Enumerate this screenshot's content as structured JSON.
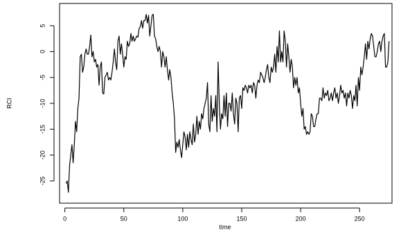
{
  "chart_data": {
    "type": "line",
    "xlabel": "time",
    "ylabel": "RCI",
    "x": [
      1,
      2,
      3,
      4,
      5,
      6,
      7,
      8,
      9,
      10,
      11,
      12,
      13,
      14,
      15,
      16,
      17,
      18,
      19,
      20,
      21,
      22,
      23,
      24,
      25,
      26,
      27,
      28,
      29,
      30,
      31,
      32,
      33,
      34,
      35,
      36,
      37,
      38,
      39,
      40,
      41,
      42,
      43,
      44,
      45,
      46,
      47,
      48,
      49,
      50,
      51,
      52,
      53,
      54,
      55,
      56,
      57,
      58,
      59,
      60,
      61,
      62,
      63,
      64,
      65,
      66,
      67,
      68,
      69,
      70,
      71,
      72,
      73,
      74,
      75,
      76,
      77,
      78,
      79,
      80,
      81,
      82,
      83,
      84,
      85,
      86,
      87,
      88,
      89,
      90,
      91,
      92,
      93,
      94,
      95,
      96,
      97,
      98,
      99,
      100,
      101,
      102,
      103,
      104,
      105,
      106,
      107,
      108,
      109,
      110,
      111,
      112,
      113,
      114,
      115,
      116,
      117,
      118,
      119,
      120,
      121,
      122,
      123,
      124,
      125,
      126,
      127,
      128,
      129,
      130,
      131,
      132,
      133,
      134,
      135,
      136,
      137,
      138,
      139,
      140,
      141,
      142,
      143,
      144,
      145,
      146,
      147,
      148,
      149,
      150,
      151,
      152,
      153,
      154,
      155,
      156,
      157,
      158,
      159,
      160,
      161,
      162,
      163,
      164,
      165,
      166,
      167,
      168,
      169,
      170,
      171,
      172,
      173,
      174,
      175,
      176,
      177,
      178,
      179,
      180,
      181,
      182,
      183,
      184,
      185,
      186,
      187,
      188,
      189,
      190,
      191,
      192,
      193,
      194,
      195,
      196,
      197,
      198,
      199,
      200,
      201,
      202,
      203,
      204,
      205,
      206,
      207,
      208,
      209,
      210,
      211,
      212,
      213,
      214,
      215,
      216,
      217,
      218,
      219,
      220,
      221,
      222,
      223,
      224,
      225,
      226,
      227,
      228,
      229,
      230,
      231,
      232,
      233,
      234,
      235,
      236,
      237,
      238,
      239,
      240,
      241,
      242,
      243,
      244,
      245,
      246,
      247,
      248,
      249,
      250,
      251,
      252,
      253,
      254,
      255,
      256,
      257,
      258,
      259,
      260,
      261,
      262,
      263,
      264,
      265,
      266,
      267,
      268,
      269,
      270,
      271,
      272,
      273,
      274,
      275
    ],
    "values": [
      -25.5,
      -25,
      -27.2,
      -22,
      -20,
      -18,
      -21.5,
      -18,
      -13.5,
      -15.5,
      -11,
      -9,
      -1,
      -0.5,
      -4,
      -3,
      -0.5,
      0.5,
      -0.5,
      -0.5,
      1,
      3.2,
      -1,
      0,
      -2,
      -1.5,
      -3,
      -2.5,
      -6.5,
      -3,
      -2,
      -8,
      -8.2,
      -5,
      -4.5,
      -4,
      -5.5,
      -5,
      -5.5,
      -4,
      -2,
      0.5,
      -2,
      -3.5,
      2,
      3,
      -0.5,
      1.5,
      -0.5,
      -3,
      -1,
      -1.5,
      2,
      1,
      1.5,
      3.5,
      2,
      3,
      2,
      2.5,
      3,
      2.8,
      4.5,
      4.8,
      6,
      4.5,
      6,
      6,
      7.2,
      5.5,
      7,
      3,
      5,
      7,
      7.2,
      3,
      2.5,
      1,
      0,
      1,
      0,
      -3,
      0,
      -1,
      -3,
      -1,
      -3.5,
      -5.5,
      -3.5,
      -5,
      -8,
      -10,
      -13,
      -19.5,
      -17.5,
      -18.5,
      -17,
      -19,
      -20.5,
      -18,
      -15.5,
      -16.5,
      -19,
      -16,
      -18.5,
      -15.5,
      -17,
      -18,
      -14,
      -17.5,
      -16,
      -12.5,
      -16,
      -13.5,
      -15,
      -12,
      -13,
      -11,
      -10,
      -9,
      -6,
      -14,
      -15.5,
      -8.5,
      -13.5,
      -11,
      -12.5,
      -8.5,
      -15.5,
      -2,
      -10,
      -15,
      -12,
      -13,
      -8.5,
      -12.5,
      -8,
      -14.5,
      -10,
      -10,
      -11.5,
      -8,
      -12,
      -14,
      -9,
      -10,
      -15.5,
      -9,
      -8.5,
      -11,
      -7,
      -7.5,
      -6.5,
      -7,
      -8,
      -6.5,
      -7,
      -6.5,
      -8,
      -6,
      -6.5,
      -9,
      -6.5,
      -5.5,
      -6,
      -4,
      -4.5,
      -5,
      -6,
      -5,
      -3.5,
      -2.5,
      -5,
      -6,
      -3,
      -4,
      -3,
      -0.5,
      -4,
      1,
      -2,
      4,
      -2,
      0,
      -2,
      4,
      2,
      -3,
      1.5,
      -1,
      -4,
      -1.5,
      -3,
      -7,
      -5,
      -6.5,
      -5,
      -8,
      -7,
      -10,
      -12.5,
      -11,
      -15,
      -14.5,
      -16,
      -15.5,
      -16,
      -15.5,
      -12,
      -12.5,
      -14.5,
      -14.5,
      -13,
      -12,
      -12,
      -9,
      -9,
      -9.5,
      -7,
      -9,
      -8,
      -8.5,
      -7.5,
      -9.5,
      -9,
      -8,
      -9.5,
      -8,
      -7,
      -9,
      -8,
      -10,
      -8.5,
      -6.5,
      -8,
      -7.5,
      -9,
      -8,
      -10.5,
      -8,
      -9,
      -7.5,
      -8.5,
      -11,
      -8.5,
      -9.5,
      -6.5,
      -10.5,
      -5,
      -7.5,
      -3,
      -4.5,
      -3,
      -1,
      1.5,
      -1.5,
      2,
      0.5,
      2.5,
      3.5,
      3,
      1,
      -1,
      -1,
      0,
      1.5,
      2,
      0,
      2,
      3,
      3.5,
      -3,
      -3,
      -2,
      2
    ],
    "color": "#000000",
    "xlim": [
      -4.5,
      277.5
    ],
    "ylim": [
      -29.3,
      9.3
    ],
    "xticks": [
      0,
      50,
      100,
      150,
      200,
      250
    ],
    "yticks": [
      5,
      0,
      -5,
      -10,
      -15,
      -20,
      -25
    ]
  }
}
